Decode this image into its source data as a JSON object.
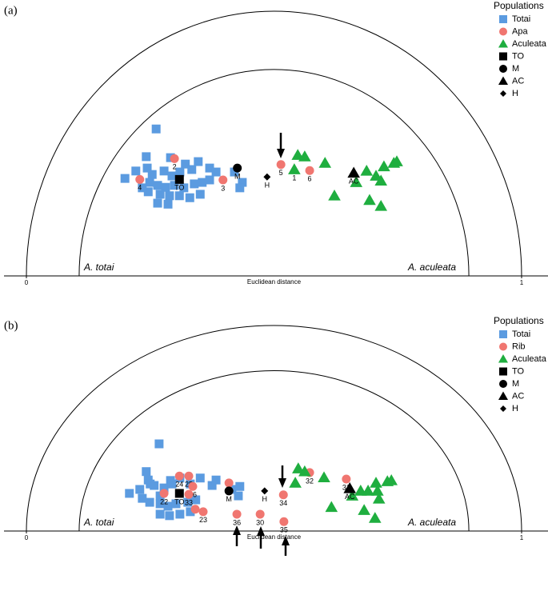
{
  "chart_data": [
    {
      "type": "scatter",
      "panel_label": "(a)",
      "xlabel": "Euclidean distance",
      "legend_title": "Populations",
      "annotations": [
        "A. totai",
        "A. aculeata"
      ],
      "xlim": [
        0,
        1
      ],
      "xticks": [
        0,
        1
      ],
      "ylim": [
        0,
        0.535
      ],
      "series": [
        {
          "name": "Totai",
          "color": "#5b9be0",
          "marker": "square",
          "x": [
            0.262,
            0.242,
            0.291,
            0.199,
            0.221,
            0.244,
            0.254,
            0.278,
            0.294,
            0.31,
            0.321,
            0.334,
            0.347,
            0.37,
            0.383,
            0.265,
            0.281,
            0.299,
            0.318,
            0.339,
            0.355,
            0.37,
            0.246,
            0.27,
            0.289,
            0.309,
            0.33,
            0.286,
            0.265,
            0.249,
            0.351,
            0.42,
            0.436,
            0.431,
            0.234
          ],
          "values": [
            0.297,
            0.241,
            0.239,
            0.197,
            0.212,
            0.218,
            0.205,
            0.212,
            0.202,
            0.21,
            0.226,
            0.215,
            0.231,
            0.218,
            0.21,
            0.183,
            0.179,
            0.183,
            0.178,
            0.186,
            0.189,
            0.194,
            0.17,
            0.165,
            0.162,
            0.162,
            0.158,
            0.145,
            0.147,
            0.189,
            0.165,
            0.21,
            0.189,
            0.178,
            0.178
          ]
        },
        {
          "name": "Apa",
          "color": "#f07670",
          "marker": "circle",
          "x": [
            0.229,
            0.299,
            0.397,
            0.514,
            0.572
          ],
          "values": [
            0.195,
            0.237,
            0.194,
            0.225,
            0.213
          ],
          "labels": [
            "4",
            "2",
            "3",
            "5",
            "6"
          ]
        },
        {
          "name": "Aculeata",
          "color": "#1fae3f",
          "marker": "triangle",
          "x": [
            0.548,
            0.562,
            0.541,
            0.603,
            0.622,
            0.666,
            0.687,
            0.706,
            0.722,
            0.742,
            0.748,
            0.693,
            0.716,
            0.716
          ],
          "values": [
            0.244,
            0.241,
            0.215,
            0.228,
            0.162,
            0.189,
            0.212,
            0.202,
            0.221,
            0.228,
            0.231,
            0.153,
            0.141,
            0.192
          ],
          "labels": [
            null,
            null,
            "1",
            null,
            null,
            null,
            null,
            null,
            null,
            null,
            null,
            null,
            null,
            null
          ]
        },
        {
          "name": "TO",
          "color": "#000000",
          "marker": "square",
          "x": [
            0.309
          ],
          "values": [
            0.195
          ]
        },
        {
          "name": "M",
          "color": "#000000",
          "marker": "circle",
          "x": [
            0.426
          ],
          "values": [
            0.218
          ]
        },
        {
          "name": "AC",
          "color": "#000000",
          "marker": "triangle",
          "x": [
            0.661
          ],
          "values": [
            0.208
          ]
        },
        {
          "name": "H",
          "color": "#000000",
          "marker": "diamond",
          "x": [
            0.486
          ],
          "values": [
            0.2
          ]
        }
      ]
    },
    {
      "type": "scatter",
      "panel_label": "(b)",
      "xlabel": "Euclidean distance",
      "legend_title": "Populations",
      "annotations": [
        "A. totai",
        "A. aculeata"
      ],
      "xlim": [
        0,
        1
      ],
      "xticks": [
        0,
        1
      ],
      "ylim": [
        0,
        0.415
      ],
      "series": [
        {
          "name": "Totai",
          "color": "#5b9be0",
          "marker": "square",
          "x": [
            0.268,
            0.242,
            0.291,
            0.208,
            0.229,
            0.246,
            0.258,
            0.27,
            0.278,
            0.294,
            0.31,
            0.331,
            0.351,
            0.375,
            0.383,
            0.249,
            0.27,
            0.286,
            0.302,
            0.326,
            0.342,
            0.27,
            0.289,
            0.31,
            0.331,
            0.234,
            0.415,
            0.428,
            0.431,
            0.25
          ],
          "values": [
            0.176,
            0.12,
            0.102,
            0.076,
            0.084,
            0.103,
            0.092,
            0.071,
            0.087,
            0.095,
            0.107,
            0.095,
            0.107,
            0.092,
            0.103,
            0.058,
            0.055,
            0.05,
            0.055,
            0.058,
            0.063,
            0.034,
            0.031,
            0.034,
            0.039,
            0.066,
            0.084,
            0.071,
            0.09,
            0.095
          ]
        },
        {
          "name": "Rib",
          "color": "#f07670",
          "marker": "circle",
          "x": [
            0.309,
            0.328,
            0.336,
            0.278,
            0.328,
            0.357,
            0.341,
            0.409,
            0.425,
            0.472,
            0.519,
            0.52,
            0.572,
            0.646
          ],
          "values": [
            0.111,
            0.111,
            0.09,
            0.076,
            0.074,
            0.039,
            0.044,
            0.097,
            0.034,
            0.034,
            0.073,
            0.019,
            0.118,
            0.105
          ],
          "labels": [
            "24",
            "25",
            "26",
            "22",
            "33",
            "23",
            null,
            null,
            "36",
            "30",
            "34",
            "35",
            "32",
            "31"
          ]
        },
        {
          "name": "Aculeata",
          "color": "#1fae3f",
          "marker": "triangle",
          "x": [
            0.549,
            0.562,
            0.543,
            0.601,
            0.616,
            0.675,
            0.69,
            0.709,
            0.706,
            0.729,
            0.737,
            0.682,
            0.704,
            0.712,
            0.658
          ],
          "values": [
            0.126,
            0.12,
            0.097,
            0.108,
            0.048,
            0.081,
            0.081,
            0.081,
            0.097,
            0.1,
            0.102,
            0.042,
            0.026,
            0.065,
            0.071
          ]
        },
        {
          "name": "TO",
          "color": "#000000",
          "marker": "square",
          "x": [
            0.309
          ],
          "values": [
            0.076
          ]
        },
        {
          "name": "M",
          "color": "#000000",
          "marker": "circle",
          "x": [
            0.409
          ],
          "values": [
            0.081
          ]
        },
        {
          "name": "AC",
          "color": "#000000",
          "marker": "triangle",
          "x": [
            0.653
          ],
          "values": [
            0.086
          ]
        },
        {
          "name": "H",
          "color": "#000000",
          "marker": "diamond",
          "x": [
            0.481
          ],
          "values": [
            0.081
          ]
        }
      ]
    }
  ]
}
